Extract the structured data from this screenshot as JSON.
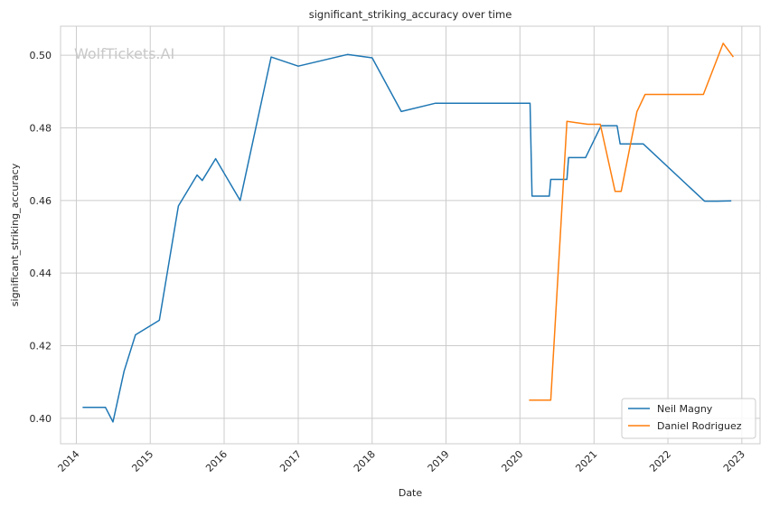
{
  "chart_data": {
    "type": "line",
    "title": "significant_striking_accuracy over time",
    "xlabel": "Date",
    "ylabel": "significant_striking_accuracy",
    "watermark": "WolfTickets.AI",
    "x_ticks": [
      "2014",
      "2015",
      "2016",
      "2017",
      "2018",
      "2019",
      "2020",
      "2021",
      "2022",
      "2023"
    ],
    "y_ticks": [
      "0.40",
      "0.42",
      "0.44",
      "0.46",
      "0.48",
      "0.50"
    ],
    "xlim": [
      "2013-10-15",
      "2023-04-01"
    ],
    "ylim": [
      0.393,
      0.508
    ],
    "grid": true,
    "legend_position": "lower-right",
    "series": [
      {
        "name": "Neil Magny",
        "color": "#1f77b4",
        "points": [
          [
            "2014-02-01",
            0.403
          ],
          [
            "2014-05-25",
            0.403
          ],
          [
            "2014-07-01",
            0.399
          ],
          [
            "2014-08-25",
            0.413
          ],
          [
            "2014-10-20",
            0.423
          ],
          [
            "2015-02-15",
            0.427
          ],
          [
            "2015-05-20",
            0.4585
          ],
          [
            "2015-08-20",
            0.467
          ],
          [
            "2015-09-15",
            0.4655
          ],
          [
            "2015-11-20",
            0.4715
          ],
          [
            "2016-03-20",
            0.46
          ],
          [
            "2016-08-20",
            0.4995
          ],
          [
            "2017-01-01",
            0.497
          ],
          [
            "2017-09-01",
            0.5002
          ],
          [
            "2018-01-01",
            0.4993
          ],
          [
            "2018-05-25",
            0.4845
          ],
          [
            "2018-11-10",
            0.4868
          ],
          [
            "2020-02-20",
            0.4868
          ],
          [
            "2020-03-01",
            0.4612
          ],
          [
            "2020-05-25",
            0.4612
          ],
          [
            "2020-06-01",
            0.4658
          ],
          [
            "2020-08-20",
            0.4658
          ],
          [
            "2020-08-28",
            0.4718
          ],
          [
            "2020-11-20",
            0.4718
          ],
          [
            "2021-02-05",
            0.4806
          ],
          [
            "2021-04-25",
            0.4806
          ],
          [
            "2021-05-10",
            0.4756
          ],
          [
            "2021-09-01",
            0.4756
          ],
          [
            "2022-07-01",
            0.4598
          ],
          [
            "2022-09-01",
            0.4598
          ],
          [
            "2022-11-10",
            0.4599
          ]
        ]
      },
      {
        "name": "Daniel Rodriguez",
        "color": "#ff7f0e",
        "points": [
          [
            "2020-02-15",
            0.405
          ],
          [
            "2020-06-01",
            0.405
          ],
          [
            "2020-08-20",
            0.4818
          ],
          [
            "2020-12-01",
            0.481
          ],
          [
            "2021-02-01",
            0.481
          ],
          [
            "2021-04-15",
            0.4625
          ],
          [
            "2021-05-15",
            0.4625
          ],
          [
            "2021-08-01",
            0.4845
          ],
          [
            "2021-09-10",
            0.4892
          ],
          [
            "2022-06-25",
            0.4892
          ],
          [
            "2022-10-01",
            0.5033
          ],
          [
            "2022-11-20",
            0.4995
          ]
        ]
      }
    ]
  }
}
